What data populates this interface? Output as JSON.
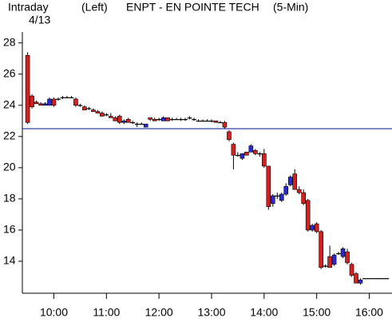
{
  "chart_data": {
    "type": "candlestick",
    "header": [
      "Intraday",
      "4/13",
      "(Left)",
      "ENPT - EN POINTE TECH",
      "(5-Min)"
    ],
    "x": [
      570,
      575,
      580,
      585,
      590,
      595,
      600,
      605,
      610,
      615,
      620,
      625,
      630,
      635,
      640,
      645,
      650,
      655,
      660,
      665,
      670,
      675,
      680,
      685,
      690,
      695,
      700,
      705,
      710,
      715,
      720,
      725,
      730,
      735,
      740,
      745,
      750,
      755,
      760,
      765,
      770,
      775,
      780,
      785,
      790,
      795,
      800,
      805,
      810,
      815,
      820,
      825,
      830,
      835,
      840,
      845,
      850,
      855,
      860,
      865,
      870,
      875,
      880,
      885,
      890,
      895,
      900,
      905,
      910,
      915,
      920,
      925,
      930,
      935,
      940,
      945,
      950,
      955,
      960,
      965,
      970,
      975,
      980
    ],
    "open": [
      27.2,
      24.6,
      24.2,
      24.1,
      24.0,
      24.0,
      24.4,
      24.4,
      24.5,
      24.5,
      24.5,
      24.4,
      24.0,
      23.9,
      23.8,
      23.7,
      23.6,
      23.5,
      23.4,
      23.3,
      23.2,
      23.3,
      22.9,
      23.1,
      22.9,
      22.8,
      22.8,
      22.6,
      23.2,
      23.1,
      23.1,
      23.0,
      23.2,
      23.1,
      23.1,
      23.1,
      23.1,
      23.2,
      23.1,
      23.0,
      23.0,
      23.0,
      23.0,
      23.0,
      22.9,
      22.9,
      22.3,
      21.5,
      20.8,
      20.6,
      21.0,
      21.0,
      21.1,
      20.9,
      20.9,
      20.1,
      17.7,
      18.2,
      17.9,
      18.3,
      18.9,
      19.6,
      18.6,
      18.4,
      17.9,
      16.0,
      16.4,
      15.9,
      13.7,
      14.3,
      13.8,
      14.5,
      14.3,
      14.6,
      13.8,
      13.2,
      12.6,
      12.9,
      12.9,
      12.9,
      12.9,
      12.9,
      12.9
    ],
    "high": [
      27.4,
      24.7,
      24.3,
      24.2,
      24.2,
      24.5,
      24.5,
      24.5,
      24.6,
      24.6,
      24.6,
      24.5,
      24.1,
      24.0,
      23.9,
      23.8,
      23.7,
      23.6,
      23.5,
      23.5,
      23.3,
      23.4,
      23.1,
      23.2,
      23.0,
      22.9,
      22.9,
      22.8,
      23.2,
      23.2,
      23.2,
      23.3,
      23.2,
      23.2,
      23.2,
      23.2,
      23.2,
      23.3,
      23.2,
      23.1,
      23.1,
      23.1,
      23.1,
      23.0,
      23.0,
      23.0,
      22.4,
      21.6,
      21.0,
      20.9,
      21.0,
      21.5,
      21.2,
      21.0,
      21.2,
      20.1,
      18.3,
      18.4,
      18.4,
      19.0,
      19.5,
      19.9,
      18.8,
      18.6,
      18.0,
      16.4,
      16.5,
      16.0,
      13.8,
      15.0,
      14.5,
      14.6,
      14.9,
      14.8,
      13.9,
      13.3,
      12.9,
      12.9,
      12.9,
      12.9,
      12.9,
      12.9,
      12.9
    ],
    "low": [
      22.8,
      23.8,
      24.1,
      24.0,
      24.0,
      24.0,
      23.9,
      24.3,
      24.4,
      24.5,
      24.5,
      23.9,
      23.9,
      23.7,
      23.7,
      23.6,
      23.5,
      23.3,
      23.3,
      23.2,
      23.0,
      22.8,
      22.8,
      22.9,
      22.8,
      22.6,
      22.8,
      22.6,
      23.0,
      23.0,
      23.0,
      23.0,
      23.0,
      23.0,
      23.1,
      23.0,
      23.0,
      23.1,
      23.0,
      23.0,
      23.0,
      23.0,
      22.9,
      22.9,
      22.9,
      22.5,
      21.7,
      19.9,
      20.7,
      20.5,
      20.8,
      21.0,
      20.8,
      20.7,
      20.0,
      17.3,
      17.5,
      18.0,
      17.8,
      18.2,
      18.8,
      18.6,
      18.3,
      17.6,
      15.9,
      15.9,
      15.8,
      13.5,
      13.6,
      13.6,
      13.7,
      14.4,
      14.2,
      13.8,
      13.0,
      12.6,
      12.5,
      12.9,
      12.9,
      12.9,
      12.9,
      12.9,
      12.9
    ],
    "close": [
      22.9,
      23.9,
      24.1,
      24.0,
      24.1,
      24.4,
      24.0,
      24.4,
      24.5,
      24.5,
      24.5,
      24.0,
      24.0,
      23.7,
      23.8,
      23.6,
      23.5,
      23.3,
      23.4,
      23.2,
      23.0,
      22.9,
      23.0,
      22.9,
      22.9,
      22.8,
      22.8,
      22.8,
      23.1,
      23.0,
      23.1,
      23.2,
      23.0,
      23.1,
      23.1,
      23.1,
      23.1,
      23.2,
      23.1,
      23.0,
      23.0,
      23.0,
      23.0,
      22.9,
      22.9,
      22.6,
      21.8,
      20.8,
      20.8,
      20.9,
      20.8,
      21.4,
      20.9,
      20.9,
      20.1,
      17.5,
      18.2,
      18.2,
      18.3,
      18.8,
      19.4,
      18.6,
      18.4,
      17.7,
      16.0,
      16.3,
      15.9,
      13.6,
      13.7,
      13.6,
      14.4,
      14.5,
      14.8,
      13.9,
      13.1,
      12.6,
      12.8,
      12.9,
      12.9,
      12.9,
      12.9,
      12.9,
      12.9
    ],
    "up_color": "#2a2ad0",
    "down_color": "#d42020",
    "edge_color": "#000000",
    "reference_line": 22.5,
    "reference_color": "#1a2a9a",
    "xlim": [
      564,
      986
    ],
    "ylim": [
      12,
      28.6
    ],
    "yticks": [
      14,
      16,
      18,
      20,
      22,
      24,
      26,
      28
    ],
    "xticks": [
      {
        "value": 600,
        "label": "10:00"
      },
      {
        "value": 660,
        "label": "11:00"
      },
      {
        "value": 720,
        "label": "12:00"
      },
      {
        "value": 780,
        "label": "13:00"
      },
      {
        "value": 840,
        "label": "14:00"
      },
      {
        "value": 900,
        "label": "15:00"
      },
      {
        "value": 960,
        "label": "16:00"
      }
    ]
  }
}
